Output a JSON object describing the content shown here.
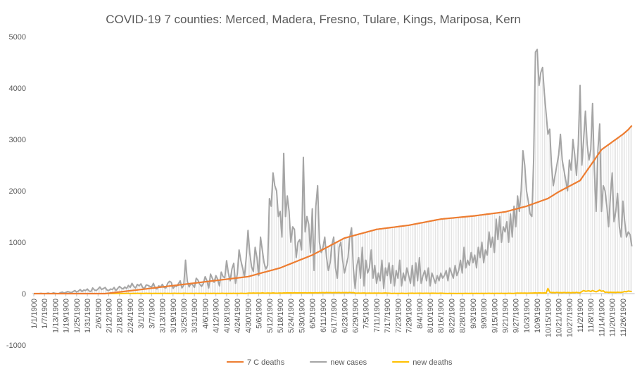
{
  "chart_data": {
    "type": "line",
    "title": "COVID-19 7 counties:  Merced,  Madera, Fresno, Tulare, Kings, Mariposa, Kern",
    "categories": [
      "1/1/1900",
      null,
      null,
      null,
      null,
      null,
      "1/7/1900",
      null,
      null,
      null,
      null,
      null,
      "1/13/1900",
      null,
      null,
      null,
      null,
      null,
      "1/19/1900",
      null,
      null,
      null,
      null,
      null,
      "1/25/1900",
      null,
      null,
      null,
      null,
      null,
      "1/31/1900",
      null,
      null,
      null,
      null,
      null,
      "2/6/1900",
      null,
      null,
      null,
      null,
      null,
      "2/12/1900",
      null,
      null,
      null,
      null,
      null,
      "2/18/1900",
      null,
      null,
      null,
      null,
      null,
      "2/24/1900",
      null,
      null,
      null,
      null,
      null,
      "3/1/1900",
      null,
      null,
      null,
      null,
      null,
      "3/7/1900",
      null,
      null,
      null,
      null,
      null,
      "3/13/1900",
      null,
      null,
      null,
      null,
      null,
      "3/19/1900",
      null,
      null,
      null,
      null,
      null,
      "3/25/1900",
      null,
      null,
      null,
      null,
      null,
      "3/31/1900",
      null,
      null,
      null,
      null,
      null,
      "4/6/1900",
      null,
      null,
      null,
      null,
      null,
      "4/12/1900",
      null,
      null,
      null,
      null,
      null,
      "4/18/1900",
      null,
      null,
      null,
      null,
      null,
      "4/24/1900",
      null,
      null,
      null,
      null,
      null,
      "4/30/1900",
      null,
      null,
      null,
      null,
      null,
      "5/6/1900",
      null,
      null,
      null,
      null,
      null,
      "5/12/1900",
      null,
      null,
      null,
      null,
      null,
      "5/18/1900",
      null,
      null,
      null,
      null,
      null,
      "5/24/1900",
      null,
      null,
      null,
      null,
      null,
      "5/30/1900",
      null,
      null,
      null,
      null,
      null,
      "6/5/1900",
      null,
      null,
      null,
      null,
      null,
      "6/11/1900",
      null,
      null,
      null,
      null,
      null,
      "6/17/1900",
      null,
      null,
      null,
      null,
      null,
      "6/23/1900",
      null,
      null,
      null,
      null,
      null,
      "6/29/1900",
      null,
      null,
      null,
      null,
      null,
      "7/5/1900",
      null,
      null,
      null,
      null,
      null,
      "7/11/1900",
      null,
      null,
      null,
      null,
      null,
      "7/17/1900",
      null,
      null,
      null,
      null,
      null,
      "7/23/1900",
      null,
      null,
      null,
      null,
      null,
      "7/29/1900",
      null,
      null,
      null,
      null,
      null,
      "8/4/1900",
      null,
      null,
      null,
      null,
      null,
      "8/10/1900",
      null,
      null,
      null,
      null,
      null,
      "8/16/1900",
      null,
      null,
      null,
      null,
      null,
      "8/22/1900",
      null,
      null,
      null,
      null,
      null,
      "8/28/1900",
      null,
      null,
      null,
      null,
      null,
      "9/3/1900",
      null,
      null,
      null,
      null,
      null,
      "9/9/1900",
      null,
      null,
      null,
      null,
      null,
      "9/15/1900",
      null,
      null,
      null,
      null,
      null,
      "9/21/1900",
      null,
      null,
      null,
      null,
      null,
      "9/27/1900",
      null,
      null,
      null,
      null,
      null,
      "10/3/1900",
      null,
      null,
      null,
      null,
      null,
      "10/9/1900",
      null,
      null,
      null,
      null,
      null,
      "10/15/1900",
      null,
      null,
      null,
      null,
      null,
      "10/21/1900",
      null,
      null,
      null,
      null,
      null,
      "10/27/1900",
      null,
      null,
      null,
      null,
      null,
      "11/2/1900",
      null,
      null,
      null,
      null,
      null,
      "11/8/1900",
      null,
      null,
      null,
      null,
      null,
      "11/14/1900",
      null,
      null,
      null,
      null,
      null,
      "11/20/1900",
      null,
      null,
      null,
      null,
      null,
      "11/26/1900",
      null,
      null,
      null,
      null,
      null
    ],
    "series": [
      {
        "name": "7 C deaths",
        "color": "#ED7D31",
        "values": [
          0,
          0,
          0,
          0,
          0,
          0,
          0,
          0,
          0,
          0,
          0,
          0,
          0,
          0,
          0,
          0,
          0,
          0,
          0,
          0,
          0,
          0,
          0,
          0,
          0,
          0,
          0,
          0,
          0,
          0,
          0,
          0,
          0,
          0,
          0,
          0,
          0,
          0,
          0,
          0,
          0,
          4,
          8,
          12,
          16,
          20,
          24,
          28,
          32,
          36,
          40,
          44,
          48,
          52,
          56,
          60,
          64,
          68,
          72,
          76,
          80,
          84,
          88,
          92,
          97,
          101,
          105,
          109,
          113,
          118,
          122,
          126,
          130,
          134,
          138,
          143,
          147,
          151,
          155,
          159,
          163,
          168,
          172,
          176,
          180,
          184,
          188,
          193,
          197,
          201,
          205,
          209,
          213,
          218,
          222,
          226,
          230,
          234,
          238,
          243,
          247,
          251,
          255,
          259,
          263,
          268,
          272,
          276,
          280,
          284,
          288,
          293,
          297,
          301,
          305,
          309,
          313,
          318,
          322,
          326,
          330,
          339,
          349,
          358,
          368,
          377,
          387,
          396,
          406,
          415,
          424,
          434,
          443,
          453,
          462,
          472,
          481,
          491,
          500,
          514,
          528,
          542,
          556,
          569,
          583,
          597,
          611,
          625,
          639,
          653,
          667,
          681,
          694,
          708,
          722,
          736,
          750,
          768,
          787,
          805,
          823,
          842,
          860,
          878,
          897,
          915,
          933,
          952,
          970,
          988,
          1007,
          1025,
          1043,
          1062,
          1080,
          1089,
          1099,
          1108,
          1118,
          1127,
          1137,
          1146,
          1156,
          1165,
          1174,
          1184,
          1193,
          1203,
          1212,
          1222,
          1231,
          1241,
          1250,
          1254,
          1259,
          1263,
          1268,
          1272,
          1277,
          1281,
          1286,
          1290,
          1294,
          1299,
          1303,
          1308,
          1312,
          1317,
          1321,
          1326,
          1330,
          1337,
          1343,
          1350,
          1357,
          1363,
          1370,
          1377,
          1383,
          1390,
          1397,
          1403,
          1410,
          1417,
          1423,
          1430,
          1437,
          1443,
          1450,
          1453,
          1457,
          1460,
          1463,
          1467,
          1470,
          1473,
          1477,
          1480,
          1483,
          1487,
          1490,
          1493,
          1497,
          1500,
          1503,
          1507,
          1510,
          1514,
          1519,
          1523,
          1528,
          1532,
          1537,
          1541,
          1546,
          1550,
          1554,
          1559,
          1563,
          1568,
          1572,
          1577,
          1581,
          1586,
          1590,
          1599,
          1608,
          1618,
          1627,
          1636,
          1645,
          1654,
          1663,
          1673,
          1682,
          1691,
          1700,
          1713,
          1725,
          1738,
          1750,
          1763,
          1775,
          1788,
          1800,
          1813,
          1825,
          1838,
          1850,
          1872,
          1893,
          1915,
          1937,
          1958,
          1980,
          1998,
          2017,
          2035,
          2053,
          2072,
          2090,
          2108,
          2127,
          2145,
          2163,
          2182,
          2200,
          2250,
          2300,
          2350,
          2400,
          2450,
          2500,
          2550,
          2600,
          2650,
          2700,
          2750,
          2800,
          2825,
          2850,
          2875,
          2900,
          2925,
          2950,
          2975,
          3000,
          3025,
          3050,
          3075,
          3100,
          3130,
          3160,
          3190,
          3230,
          3270
        ]
      },
      {
        "name": "new cases",
        "color": "#A5A5A5",
        "values": [
          0,
          0,
          0,
          0,
          5,
          0,
          0,
          0,
          10,
          0,
          0,
          15,
          5,
          0,
          0,
          20,
          30,
          10,
          25,
          40,
          30,
          20,
          40,
          60,
          30,
          50,
          80,
          40,
          70,
          60,
          90,
          50,
          40,
          110,
          70,
          60,
          90,
          130,
          80,
          100,
          120,
          70,
          60,
          90,
          80,
          120,
          60,
          100,
          140,
          110,
          90,
          130,
          100,
          160,
          120,
          200,
          140,
          110,
          180,
          150,
          190,
          120,
          100,
          170,
          160,
          140,
          130,
          200,
          110,
          90,
          150,
          130,
          180,
          120,
          110,
          200,
          240,
          220,
          100,
          150,
          140,
          190,
          250,
          110,
          160,
          650,
          240,
          130,
          200,
          170,
          120,
          300,
          260,
          180,
          140,
          200,
          330,
          250,
          110,
          380,
          300,
          220,
          350,
          280,
          150,
          420,
          330,
          310,
          640,
          400,
          250,
          480,
          590,
          200,
          380,
          850,
          640,
          500,
          320,
          700,
          1230,
          780,
          520,
          430,
          900,
          700,
          350,
          1100,
          850,
          600,
          480,
          550,
          1850,
          1700,
          2350,
          2100,
          2000,
          1500,
          1600,
          1100,
          2730,
          1500,
          1900,
          1600,
          1000,
          1300,
          1250,
          700,
          1000,
          1050,
          850,
          2650,
          1200,
          1500,
          1350,
          800,
          1650,
          450,
          1700,
          2100,
          1000,
          800,
          900,
          1100,
          700,
          450,
          600,
          950,
          1100,
          500,
          300,
          900,
          1000,
          650,
          400,
          550,
          700,
          1100,
          1280,
          500,
          100,
          550,
          700,
          300,
          900,
          150,
          650,
          400,
          500,
          850,
          300,
          550,
          200,
          400,
          250,
          650,
          100,
          500,
          350,
          600,
          200,
          550,
          150,
          450,
          300,
          650,
          150,
          400,
          250,
          500,
          350,
          200,
          550,
          150,
          600,
          250,
          700,
          200,
          350,
          450,
          250,
          500,
          150,
          400,
          300,
          200,
          350,
          250,
          400,
          300,
          350,
          450,
          250,
          500,
          400,
          300,
          550,
          350,
          450,
          650,
          400,
          900,
          500,
          650,
          550,
          800,
          600,
          750,
          500,
          900,
          700,
          1000,
          600,
          850,
          750,
          1200,
          900,
          1100,
          800,
          1450,
          1050,
          1500,
          1000,
          1300,
          1200,
          1400,
          1000,
          1550,
          1100,
          1700,
          1300,
          1900,
          1600,
          2000,
          2780,
          2500,
          2000,
          1800,
          1550,
          1500,
          2600,
          4700,
          4750,
          4050,
          4300,
          4400,
          3900,
          3500,
          3100,
          3200,
          2500,
          2100,
          2300,
          2500,
          2700,
          3100,
          2600,
          2400,
          2200,
          2000,
          2600,
          2400,
          3000,
          2700,
          2300,
          2900,
          4050,
          2500,
          3000,
          3550,
          2900,
          2600,
          2800,
          3700,
          2400,
          1600,
          2800,
          3300,
          1600,
          2100,
          2000,
          1700,
          1300,
          1900,
          2350,
          1400,
          1600,
          1950,
          1300,
          1100,
          1800,
          1400,
          1100,
          1200,
          1150,
          920
        ]
      },
      {
        "name": "new deaths",
        "color": "#FFC000",
        "values": [
          0,
          0,
          0,
          0,
          0,
          0,
          0,
          0,
          0,
          0,
          0,
          0,
          0,
          0,
          0,
          0,
          0,
          0,
          0,
          0,
          0,
          0,
          0,
          0,
          0,
          0,
          0,
          0,
          0,
          0,
          0,
          0,
          0,
          0,
          0,
          0,
          0,
          0,
          0,
          0,
          0,
          1,
          2,
          1,
          3,
          2,
          4,
          3,
          5,
          2,
          4,
          3,
          5,
          6,
          2,
          4,
          5,
          3,
          6,
          4,
          5,
          3,
          4,
          6,
          4,
          5,
          3,
          4,
          5,
          4,
          4,
          5,
          3,
          6,
          4,
          5,
          4,
          3,
          5,
          6,
          4,
          5,
          3,
          4,
          6,
          5,
          4,
          3,
          5,
          4,
          4,
          6,
          3,
          5,
          4,
          5,
          4,
          6,
          3,
          5,
          4,
          6,
          3,
          5,
          4,
          5,
          6,
          3,
          5,
          4,
          5,
          4,
          6,
          3,
          5,
          4,
          6,
          5,
          3,
          4,
          8,
          10,
          9,
          12,
          8,
          11,
          10,
          9,
          13,
          10,
          9,
          12,
          10,
          8,
          14,
          11,
          9,
          10,
          12,
          9,
          14,
          12,
          16,
          13,
          15,
          12,
          17,
          14,
          13,
          15,
          16,
          14,
          18,
          12,
          15,
          17,
          13,
          16,
          18,
          14,
          19,
          17,
          20,
          16,
          22,
          18,
          21,
          17,
          19,
          20,
          18,
          22,
          16,
          20,
          19,
          21,
          17,
          23,
          18,
          20,
          10,
          9,
          11,
          8,
          10,
          12,
          9,
          8,
          10,
          9,
          9,
          11,
          8,
          10,
          9,
          7,
          10,
          12,
          8,
          9,
          5,
          4,
          6,
          3,
          5,
          4,
          6,
          5,
          4,
          3,
          7,
          6,
          8,
          5,
          7,
          6,
          8,
          7,
          5,
          6,
          6,
          7,
          5,
          8,
          6,
          7,
          5,
          6,
          8,
          7,
          3,
          4,
          2,
          5,
          3,
          4,
          3,
          2,
          4,
          3,
          4,
          3,
          5,
          3,
          4,
          5,
          3,
          4,
          5,
          4,
          4,
          5,
          3,
          5,
          4,
          6,
          4,
          5,
          3,
          5,
          5,
          4,
          6,
          3,
          5,
          4,
          6,
          5,
          3,
          4,
          9,
          10,
          8,
          11,
          9,
          10,
          9,
          8,
          11,
          10,
          12,
          14,
          11,
          15,
          13,
          12,
          14,
          11,
          100,
          30,
          20,
          22,
          18,
          25,
          19,
          21,
          17,
          23,
          18,
          20,
          20,
          15,
          22,
          18,
          25,
          19,
          16,
          40,
          60,
          45,
          50,
          55,
          40,
          60,
          45,
          35,
          50,
          70,
          45,
          55,
          25,
          30,
          22,
          28,
          24,
          26,
          23,
          27,
          25,
          24,
          30,
          40,
          35,
          50,
          45,
          40
        ]
      }
    ],
    "ylim": [
      -1000,
      5000
    ],
    "yticks": [
      -1000,
      0,
      1000,
      2000,
      3000,
      4000,
      5000
    ],
    "grid": false,
    "high_low_lines": true,
    "legend": "bottom"
  }
}
